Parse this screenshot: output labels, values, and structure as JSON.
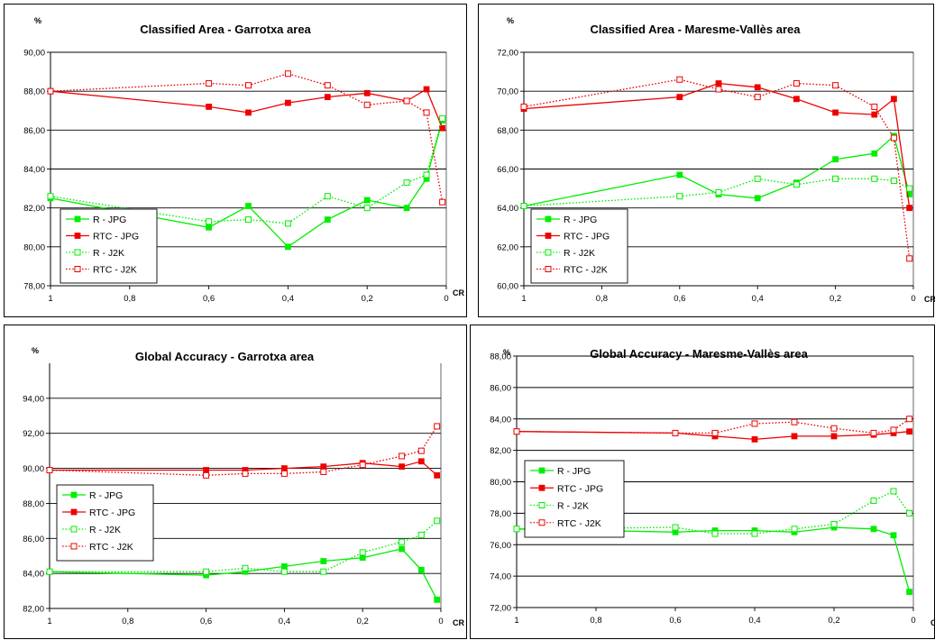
{
  "chart_data": [
    {
      "type": "line",
      "title": "Classified Area - Garrotxa area",
      "ylabel": "%",
      "xlabel": "CR",
      "ylim": [
        78,
        90
      ],
      "yticks": [
        "78,00",
        "80,00",
        "82,00",
        "84,00",
        "86,00",
        "88,00",
        "90,00"
      ],
      "xticks": [
        "1",
        "0,8",
        "0,6",
        "0,4",
        "0,2",
        "0"
      ],
      "grid": true,
      "legend": "bottom-left",
      "series": [
        {
          "name": "R - JPG",
          "color": "#00ee00",
          "style": "solid",
          "marker": "filled",
          "x": [
            1,
            0.6,
            0.5,
            0.4,
            0.3,
            0.2,
            0.1,
            0.05,
            0.01
          ],
          "values": [
            82.5,
            81.0,
            82.1,
            80.0,
            81.4,
            82.4,
            82.0,
            83.5,
            86.5
          ]
        },
        {
          "name": "RTC - JPG",
          "color": "#ee0000",
          "style": "solid",
          "marker": "filled",
          "x": [
            1,
            0.6,
            0.5,
            0.4,
            0.3,
            0.2,
            0.1,
            0.05,
            0.01
          ],
          "values": [
            88.0,
            87.2,
            86.9,
            87.4,
            87.7,
            87.9,
            87.5,
            88.1,
            86.1
          ]
        },
        {
          "name": "R - J2K",
          "color": "#00ee00",
          "style": "dotted",
          "marker": "open",
          "x": [
            1,
            0.6,
            0.5,
            0.4,
            0.3,
            0.2,
            0.1,
            0.05,
            0.01
          ],
          "values": [
            82.6,
            81.3,
            81.4,
            81.2,
            82.6,
            82.0,
            83.3,
            83.7,
            86.6
          ]
        },
        {
          "name": "RTC - J2K",
          "color": "#ee0000",
          "style": "dotted",
          "marker": "open",
          "x": [
            1,
            0.6,
            0.5,
            0.4,
            0.3,
            0.2,
            0.1,
            0.05,
            0.01
          ],
          "values": [
            88.0,
            88.4,
            88.3,
            88.9,
            88.3,
            87.3,
            87.5,
            86.9,
            82.3
          ]
        }
      ]
    },
    {
      "type": "line",
      "title": "Classified Area - Maresme-Vallès area",
      "ylabel": "%",
      "xlabel": "CR",
      "ylim": [
        60,
        72
      ],
      "yticks": [
        "60,00",
        "62,00",
        "64,00",
        "66,00",
        "68,00",
        "70,00",
        "72,00"
      ],
      "xticks": [
        "1",
        "0,8",
        "0,6",
        "0,4",
        "0,2",
        "0"
      ],
      "grid": true,
      "legend": "bottom-left",
      "series": [
        {
          "name": "R - JPG",
          "color": "#00ee00",
          "style": "solid",
          "marker": "filled",
          "x": [
            1,
            0.6,
            0.5,
            0.4,
            0.3,
            0.2,
            0.1,
            0.05,
            0.01
          ],
          "values": [
            64.1,
            65.7,
            64.7,
            64.5,
            65.3,
            66.5,
            66.8,
            67.7,
            64.7
          ]
        },
        {
          "name": "RTC - JPG",
          "color": "#ee0000",
          "style": "solid",
          "marker": "filled",
          "x": [
            1,
            0.6,
            0.5,
            0.4,
            0.3,
            0.2,
            0.1,
            0.05,
            0.01
          ],
          "values": [
            69.1,
            69.7,
            70.4,
            70.2,
            69.6,
            68.9,
            68.8,
            69.6,
            64.0
          ]
        },
        {
          "name": "R - J2K",
          "color": "#00ee00",
          "style": "dotted",
          "marker": "open",
          "x": [
            1,
            0.6,
            0.5,
            0.4,
            0.3,
            0.2,
            0.1,
            0.05,
            0.01
          ],
          "values": [
            64.1,
            64.6,
            64.8,
            65.5,
            65.2,
            65.5,
            65.5,
            65.4,
            65.0
          ]
        },
        {
          "name": "RTC - J2K",
          "color": "#ee0000",
          "style": "dotted",
          "marker": "open",
          "x": [
            1,
            0.6,
            0.5,
            0.4,
            0.3,
            0.2,
            0.1,
            0.05,
            0.01
          ],
          "values": [
            69.2,
            70.6,
            70.1,
            69.7,
            70.4,
            70.3,
            69.2,
            67.6,
            61.4
          ]
        }
      ]
    },
    {
      "type": "line",
      "title": "Global Accuracy - Garrotxa area",
      "ylabel": "%",
      "xlabel": "CR",
      "ylim": [
        82,
        96
      ],
      "yticks": [
        "82,00",
        "84,00",
        "86,00",
        "88,00",
        "90,00",
        "92,00",
        "94,00"
      ],
      "xticks": [
        "1",
        "0,8",
        "0,6",
        "0,4",
        "0,2",
        "0"
      ],
      "grid": true,
      "legend": "middle-left",
      "series": [
        {
          "name": "R - JPG",
          "color": "#00ee00",
          "style": "solid",
          "marker": "filled",
          "x": [
            1,
            0.6,
            0.5,
            0.4,
            0.3,
            0.2,
            0.1,
            0.05,
            0.01
          ],
          "values": [
            84.1,
            83.9,
            84.1,
            84.4,
            84.7,
            84.9,
            85.4,
            84.2,
            82.5
          ]
        },
        {
          "name": "RTC - JPG",
          "color": "#ee0000",
          "style": "solid",
          "marker": "filled",
          "x": [
            1,
            0.6,
            0.5,
            0.4,
            0.3,
            0.2,
            0.1,
            0.05,
            0.01
          ],
          "values": [
            89.9,
            89.9,
            89.9,
            90.0,
            90.1,
            90.3,
            90.1,
            90.4,
            89.6
          ]
        },
        {
          "name": "R - J2K",
          "color": "#00ee00",
          "style": "dotted",
          "marker": "open",
          "x": [
            1,
            0.6,
            0.5,
            0.4,
            0.3,
            0.2,
            0.1,
            0.05,
            0.01
          ],
          "values": [
            84.1,
            84.1,
            84.3,
            84.1,
            84.1,
            85.2,
            85.8,
            86.2,
            87.0
          ]
        },
        {
          "name": "RTC - J2K",
          "color": "#ee0000",
          "style": "dotted",
          "marker": "open",
          "x": [
            1,
            0.6,
            0.5,
            0.4,
            0.3,
            0.2,
            0.1,
            0.05,
            0.01
          ],
          "values": [
            89.9,
            89.6,
            89.7,
            89.7,
            89.8,
            90.2,
            90.7,
            91.0,
            92.4
          ]
        }
      ]
    },
    {
      "type": "line",
      "title": "Global Accuracy - Maresme-Vallès area",
      "ylabel": "%",
      "xlabel": "CR",
      "ylim": [
        72,
        88
      ],
      "yticks": [
        "72,00",
        "74,00",
        "76,00",
        "78,00",
        "80,00",
        "82,00",
        "84,00",
        "86,00",
        "88,00"
      ],
      "xticks": [
        "1",
        "0,8",
        "0,6",
        "0,4",
        "0,2",
        "0"
      ],
      "grid": true,
      "legend": "middle-left",
      "series": [
        {
          "name": "R - JPG",
          "color": "#00ee00",
          "style": "solid",
          "marker": "filled",
          "x": [
            1,
            0.6,
            0.5,
            0.4,
            0.3,
            0.2,
            0.1,
            0.05,
            0.01
          ],
          "values": [
            77.0,
            76.8,
            76.9,
            76.9,
            76.8,
            77.1,
            77.0,
            76.6,
            73.0
          ]
        },
        {
          "name": "RTC - JPG",
          "color": "#ee0000",
          "style": "solid",
          "marker": "filled",
          "x": [
            1,
            0.6,
            0.5,
            0.4,
            0.3,
            0.2,
            0.1,
            0.05,
            0.01
          ],
          "values": [
            83.2,
            83.1,
            82.9,
            82.7,
            82.9,
            82.9,
            83.0,
            83.1,
            83.2
          ]
        },
        {
          "name": "R - J2K",
          "color": "#00ee00",
          "style": "dotted",
          "marker": "open",
          "x": [
            1,
            0.6,
            0.5,
            0.4,
            0.3,
            0.2,
            0.1,
            0.05,
            0.01
          ],
          "values": [
            77.0,
            77.1,
            76.7,
            76.7,
            77.0,
            77.3,
            78.8,
            79.4,
            78.0
          ]
        },
        {
          "name": "RTC - J2K",
          "color": "#ee0000",
          "style": "dotted",
          "marker": "open",
          "x": [
            1,
            0.6,
            0.5,
            0.4,
            0.3,
            0.2,
            0.1,
            0.05,
            0.01
          ],
          "values": [
            83.2,
            83.1,
            83.1,
            83.7,
            83.8,
            83.4,
            83.1,
            83.3,
            84.0
          ]
        }
      ]
    }
  ]
}
